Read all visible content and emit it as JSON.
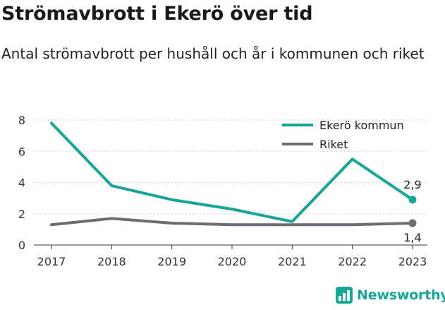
{
  "title": "Strömavbrott i Ekerö över tid",
  "subtitle": "Antal strömavbrott per hushåll och år i kommunen och riket",
  "brand": "Newsworthy",
  "colors": {
    "ekero": "#17a596",
    "riket": "#6c6c72",
    "grid": "#cccccc",
    "axis": "#333333"
  },
  "chart_data": {
    "type": "line",
    "x": [
      "2017",
      "2018",
      "2019",
      "2020",
      "2021",
      "2022",
      "2023"
    ],
    "ylim": [
      0,
      8
    ],
    "yticks": [
      0,
      2,
      4,
      6,
      8
    ],
    "grid": true,
    "legend_position": "top-right",
    "series": [
      {
        "name": "Ekerö kommun",
        "color": "#17a596",
        "values": [
          7.8,
          3.8,
          2.9,
          2.3,
          1.5,
          5.5,
          2.9
        ],
        "end_label": "2,9"
      },
      {
        "name": "Riket",
        "color": "#6c6c72",
        "values": [
          1.3,
          1.7,
          1.4,
          1.3,
          1.3,
          1.3,
          1.4
        ],
        "end_label": "1,4"
      }
    ]
  }
}
